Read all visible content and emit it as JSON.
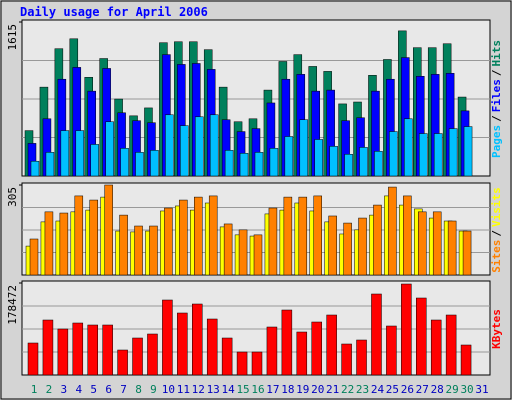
{
  "chart_data": [
    {
      "type": "bar",
      "title": "Daily usage for April 2006",
      "categories": [
        "1",
        "2",
        "3",
        "4",
        "5",
        "6",
        "7",
        "8",
        "9",
        "10",
        "11",
        "12",
        "13",
        "14",
        "15",
        "16",
        "17",
        "18",
        "19",
        "20",
        "21",
        "22",
        "23",
        "24",
        "25",
        "26",
        "27",
        "28",
        "29",
        "30",
        "31"
      ],
      "category_colors": [
        "#00805c",
        "#00805c",
        "#0000c0",
        "#0000c0",
        "#0000c0",
        "#0000c0",
        "#0000c0",
        "#00805c",
        "#00805c",
        "#0000c0",
        "#0000c0",
        "#0000c0",
        "#0000c0",
        "#0000c0",
        "#00805c",
        "#00805c",
        "#0000c0",
        "#0000c0",
        "#0000c0",
        "#0000c0",
        "#0000c0",
        "#00805c",
        "#00805c",
        "#0000c0",
        "#0000c0",
        "#0000c0",
        "#0000c0",
        "#0000c0",
        "#00805c",
        "#00805c",
        "#0000c0"
      ],
      "legend_separator": "/",
      "series": [
        {
          "name": "Hits",
          "color": "#00805c",
          "values": [
            476,
            932,
            1335,
            1439,
            1035,
            1232,
            807,
            631,
            714,
            1398,
            1408,
            1408,
            1325,
            932,
            569,
            600,
            901,
            1201,
            1273,
            1149,
            1097,
            756,
            776,
            1056,
            1222,
            1522,
            1346,
            1346,
            1387,
            828,
            null
          ]
        },
        {
          "name": "Files",
          "color": "#0000ff",
          "values": [
            342,
            600,
            1015,
            1139,
            890,
            1128,
            663,
            580,
            559,
            1273,
            1170,
            1180,
            1118,
            590,
            466,
            497,
            766,
            1015,
            1066,
            890,
            901,
            580,
            611,
            890,
            1015,
            1242,
            1046,
            1066,
            1077,
            683,
            null
          ]
        },
        {
          "name": "Pages",
          "color": "#00c0ff",
          "values": [
            155,
            248,
            476,
            476,
            331,
            569,
            290,
            248,
            269,
            642,
            528,
            621,
            642,
            269,
            238,
            248,
            290,
            414,
            590,
            383,
            311,
            228,
            300,
            259,
            466,
            600,
            445,
            445,
            497,
            518,
            null
          ]
        }
      ],
      "ylim": [
        0,
        1615
      ],
      "yticks": [
        1615
      ]
    },
    {
      "type": "bar",
      "legend_separator": "/",
      "series": [
        {
          "name": "Visits",
          "color": "#ffff00",
          "values": [
            98,
            180,
            183,
            214,
            220,
            264,
            149,
            146,
            149,
            217,
            234,
            220,
            244,
            163,
            136,
            132,
            207,
            220,
            244,
            217,
            180,
            139,
            153,
            203,
            268,
            237,
            224,
            193,
            183,
            149,
            null
          ]
        },
        {
          "name": "Sites",
          "color": "#ff8000",
          "values": [
            122,
            214,
            210,
            268,
            254,
            305,
            203,
            166,
            166,
            227,
            254,
            264,
            268,
            173,
            153,
            136,
            227,
            264,
            264,
            268,
            200,
            176,
            193,
            237,
            298,
            268,
            214,
            214,
            183,
            149,
            null
          ]
        }
      ],
      "ylim": [
        0,
        305
      ],
      "yticks": [
        305
      ]
    },
    {
      "type": "bar",
      "series": [
        {
          "name": "KBytes",
          "color": "#ff0000",
          "values": [
            62078,
            106695,
            89236,
            100876,
            96996,
            96996,
            48498,
            71778,
            79537,
            145494,
            120275,
            137734,
            108635,
            71778,
            44618,
            44618,
            93116,
            126095,
            83417,
            102816,
            116395,
            60138,
            67898,
            157134,
            95056,
            176532,
            149374,
            106695,
            116395,
            58198,
            null
          ]
        }
      ],
      "ylim": [
        0,
        178472
      ],
      "yticks": [
        178472
      ]
    }
  ]
}
